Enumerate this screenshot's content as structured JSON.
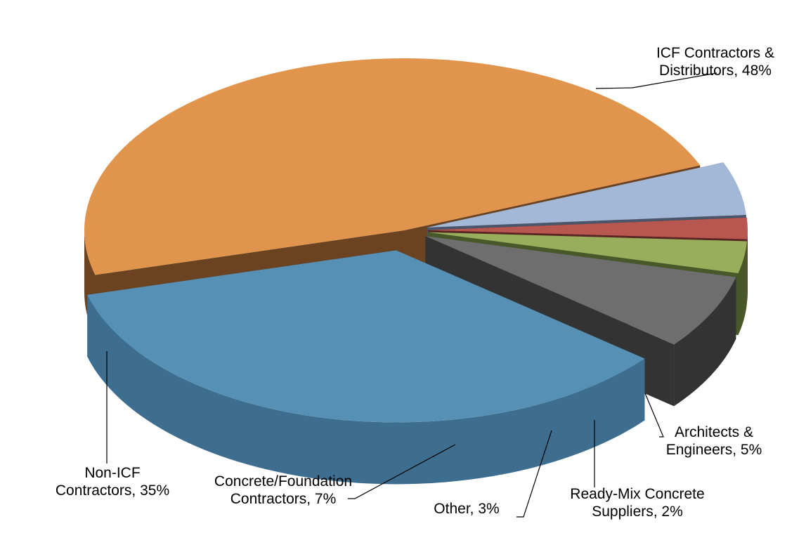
{
  "chart_data": {
    "type": "pie",
    "title": "",
    "style": "3d-exploded",
    "slices": [
      {
        "name": "ICF Contractors & Distributors",
        "value": 48,
        "label_lines": [
          "ICF Contractors &",
          "Distributors, 48%"
        ],
        "color": "#E0944C",
        "side_color": "#6B4320"
      },
      {
        "name": "Architects & Engineers",
        "value": 5,
        "label_lines": [
          "Architects &",
          "Engineers, 5%"
        ],
        "color": "#A3B8D6",
        "side_color": "#4C566A"
      },
      {
        "name": "Ready-Mix Concrete Suppliers",
        "value": 2,
        "label_lines": [
          "Ready-Mix Concrete",
          "Suppliers, 2%"
        ],
        "color": "#B85650",
        "side_color": "#592623"
      },
      {
        "name": "Other",
        "value": 3,
        "label_lines": [
          "Other, 3%"
        ],
        "color": "#98AE5C",
        "side_color": "#495828"
      },
      {
        "name": "Concrete/Foundation Contractors",
        "value": 7,
        "label_lines": [
          "Concrete/Foundation",
          "Contractors, 7%"
        ],
        "color": "#6E6E6E",
        "side_color": "#333333"
      },
      {
        "name": "Non-ICF Contractors",
        "value": 35,
        "label_lines": [
          "Non-ICF",
          "Contractors, 35%"
        ],
        "color": "#5690B5",
        "side_color": "#3E6E8F"
      }
    ]
  }
}
